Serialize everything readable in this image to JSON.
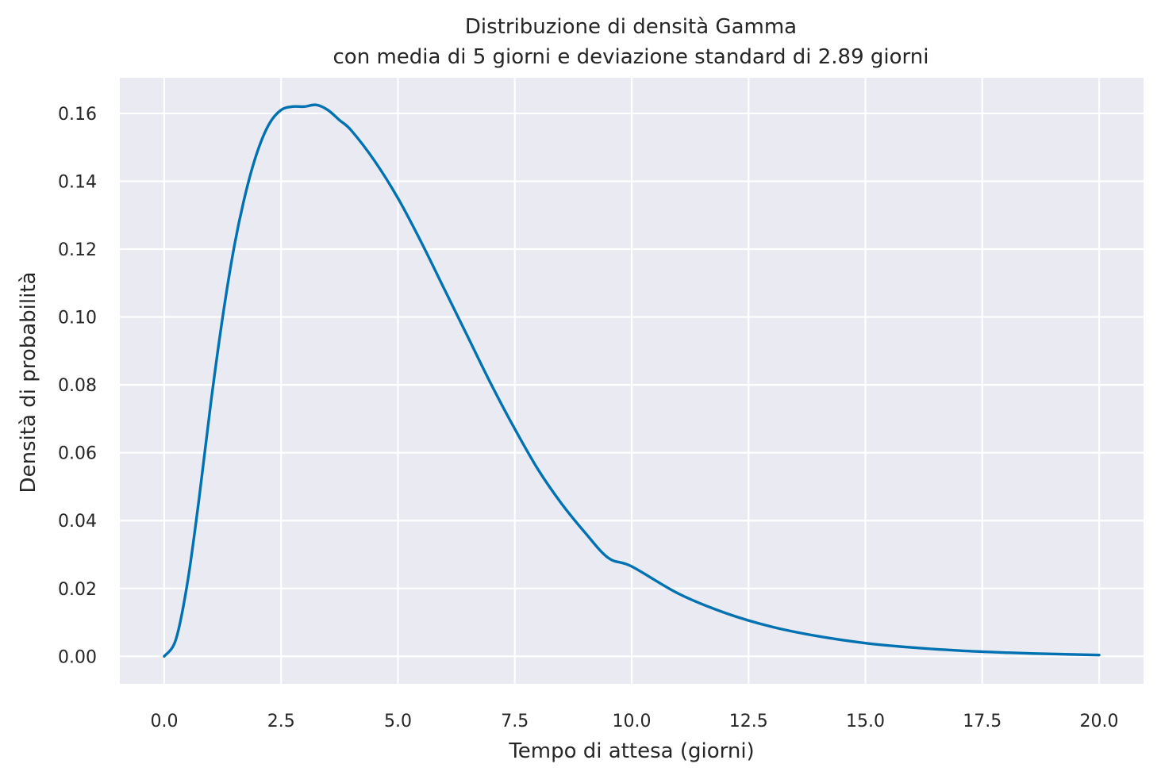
{
  "chart_data": {
    "type": "line",
    "title": "Distribuzione di densità Gamma",
    "subtitle": "con media di 5 giorni e deviazione standard di 2.89 giorni",
    "xlabel": "Tempo di attesa (giorni)",
    "ylabel": "Densità di probabilità",
    "xlim": [
      -0.95,
      20.95
    ],
    "ylim": [
      -0.0081,
      0.1705
    ],
    "grid": true,
    "legend": "none",
    "x_ticks": [
      0.0,
      2.5,
      5.0,
      7.5,
      10.0,
      12.5,
      15.0,
      17.5,
      20.0
    ],
    "x_tick_labels": [
      "0.0",
      "2.5",
      "5.0",
      "7.5",
      "10.0",
      "12.5",
      "15.0",
      "17.5",
      "20.0"
    ],
    "y_ticks": [
      0.0,
      0.02,
      0.04,
      0.06,
      0.08,
      0.1,
      0.12,
      0.14,
      0.16
    ],
    "y_tick_labels": [
      "0.00",
      "0.02",
      "0.04",
      "0.06",
      "0.08",
      "0.10",
      "0.12",
      "0.14",
      "0.16"
    ],
    "series": [
      {
        "color": "#0072b2",
        "x": [
          0,
          0.25,
          0.5,
          0.75,
          1,
          1.25,
          1.5,
          1.75,
          2,
          2.25,
          2.5,
          2.75,
          3,
          3.25,
          3.5,
          3.75,
          4,
          4.5,
          5,
          5.5,
          6,
          6.5,
          7,
          7.5,
          8,
          8.5,
          9,
          9.5,
          10,
          11,
          12,
          13,
          14,
          15,
          16,
          17,
          18,
          19,
          20
        ],
        "y": [
          0,
          0.005,
          0.022,
          0.047,
          0.075,
          0.1,
          0.121,
          0.137,
          0.149,
          0.157,
          0.161,
          0.162,
          0.162,
          0.1625,
          0.161,
          0.158,
          0.155,
          0.146,
          0.135,
          0.122,
          0.108,
          0.094,
          0.08,
          0.067,
          0.055,
          0.045,
          0.0365,
          0.029,
          0.0265,
          0.0185,
          0.0128,
          0.0087,
          0.0059,
          0.0039,
          0.0026,
          0.0017,
          0.0011,
          0.0007,
          0.0004
        ]
      }
    ]
  },
  "theme": {
    "plot_background": "#eaeaf2",
    "grid_color": "#ffffff",
    "text_color": "#262626"
  }
}
